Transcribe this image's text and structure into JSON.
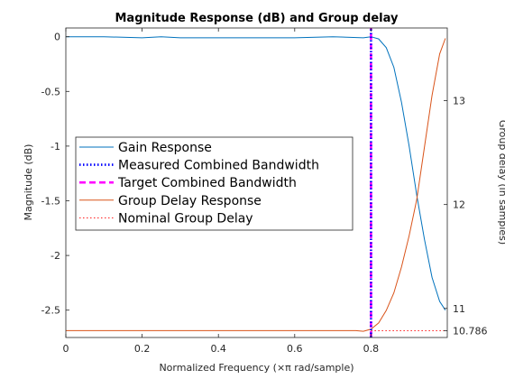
{
  "chart_data": {
    "type": "line",
    "title": "Magnitude Response (dB) and Group delay",
    "xlabel": "Normalized Frequency (×π rad/sample)",
    "ylabel_left": "Magnitude (dB)",
    "ylabel_right": "Group delay (in samples)",
    "xlim": [
      0,
      1
    ],
    "ylim_left": [
      -2.75,
      0.08
    ],
    "ylim_right": [
      10.72,
      13.7
    ],
    "x_ticks": [
      "0",
      "0.2",
      "0.4",
      "0.6",
      "0.8"
    ],
    "x_tick_values": [
      0,
      0.2,
      0.4,
      0.6,
      0.8
    ],
    "y_ticks_left": [
      "0",
      "-0.5",
      "-1",
      "-1.5",
      "-2",
      "-2.5"
    ],
    "y_tick_values_left": [
      0,
      -0.5,
      -1,
      -1.5,
      -2,
      -2.5
    ],
    "y_ticks_right": [
      "13",
      "12",
      "11",
      "10.786"
    ],
    "y_tick_values_right": [
      13,
      12,
      11,
      10.786
    ],
    "grid": false,
    "legend_position": "center-left",
    "series": [
      {
        "name": "Gain Response",
        "axis": "left",
        "color": "#0072BD",
        "style": "solid",
        "x": [
          0,
          0.1,
          0.2,
          0.25,
          0.3,
          0.4,
          0.5,
          0.6,
          0.7,
          0.78,
          0.8,
          0.82,
          0.84,
          0.86,
          0.88,
          0.9,
          0.92,
          0.94,
          0.96,
          0.98,
          0.995
        ],
        "y": [
          0.0,
          0.0,
          -0.01,
          0.0,
          -0.01,
          -0.01,
          -0.01,
          -0.01,
          0.0,
          -0.01,
          0.0,
          -0.02,
          -0.1,
          -0.28,
          -0.6,
          -1.0,
          -1.45,
          -1.85,
          -2.2,
          -2.42,
          -2.5
        ]
      },
      {
        "name": "Measured Combined Bandwidth",
        "axis": "left",
        "color": "#0000FF",
        "style": "dotted",
        "x": [
          0.8,
          0.8
        ],
        "y": [
          -2.75,
          0.08
        ]
      },
      {
        "name": "Target Combined Bandwidth",
        "axis": "left",
        "color": "#FF00FF",
        "style": "dashed",
        "x": [
          0.8,
          0.8
        ],
        "y": [
          -2.75,
          0.08
        ]
      },
      {
        "name": "Group Delay Response",
        "axis": "right",
        "color": "#D95319",
        "style": "solid",
        "x": [
          0,
          0.2,
          0.4,
          0.6,
          0.76,
          0.78,
          0.8,
          0.82,
          0.84,
          0.86,
          0.88,
          0.9,
          0.92,
          0.94,
          0.96,
          0.98,
          0.995
        ],
        "y": [
          10.786,
          10.786,
          10.786,
          10.786,
          10.786,
          10.78,
          10.8,
          10.86,
          10.98,
          11.15,
          11.4,
          11.7,
          12.05,
          12.55,
          13.05,
          13.45,
          13.6
        ]
      },
      {
        "name": "Nominal Group Delay",
        "axis": "right",
        "color": "#FF0000",
        "style": "dotted",
        "x": [
          0.8,
          1.0
        ],
        "y": [
          10.786,
          10.786
        ]
      }
    ]
  }
}
